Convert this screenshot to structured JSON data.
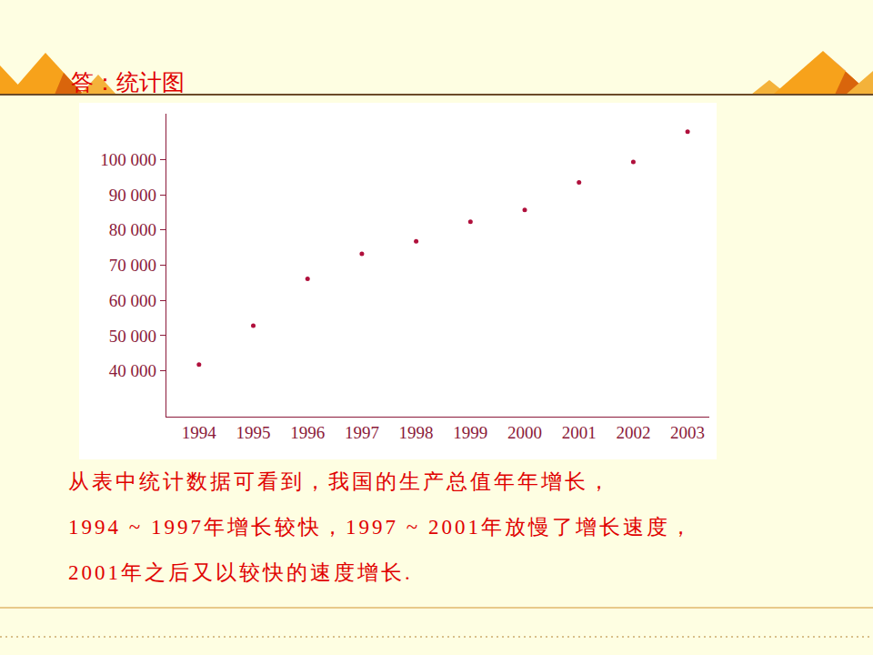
{
  "chart_data": {
    "type": "scatter",
    "title": "答：统计图",
    "x": [
      1994,
      1995,
      1996,
      1997,
      1998,
      1999,
      2000,
      2001,
      2002,
      2003
    ],
    "values": [
      41800,
      52800,
      66100,
      73200,
      76800,
      82300,
      85700,
      93500,
      99300,
      107900
    ],
    "color": "#b0103c",
    "marker": "circle",
    "xlim": [
      1993.4,
      2003.4
    ],
    "xticks": [
      1994,
      1995,
      1996,
      1997,
      1998,
      1999,
      2000,
      2001,
      2002,
      2003
    ],
    "ylim": [
      27000,
      113000
    ],
    "yticks": [
      {
        "value": 40000,
        "label": "40 000"
      },
      {
        "value": 50000,
        "label": "50 000"
      },
      {
        "value": 60000,
        "label": "60 000"
      },
      {
        "value": 70000,
        "label": "70 000"
      },
      {
        "value": 80000,
        "label": "80 000"
      },
      {
        "value": 90000,
        "label": "90 000"
      },
      {
        "value": 100000,
        "label": "100 000"
      }
    ],
    "grid": false
  },
  "caption": [
    "从表中统计数据可看到，我国的生产总值年年增长，",
    "1994 ~ 1997年增长较快，1997 ~ 2001年放慢了增长速度，",
    "2001年之后又以较快的速度增长."
  ]
}
